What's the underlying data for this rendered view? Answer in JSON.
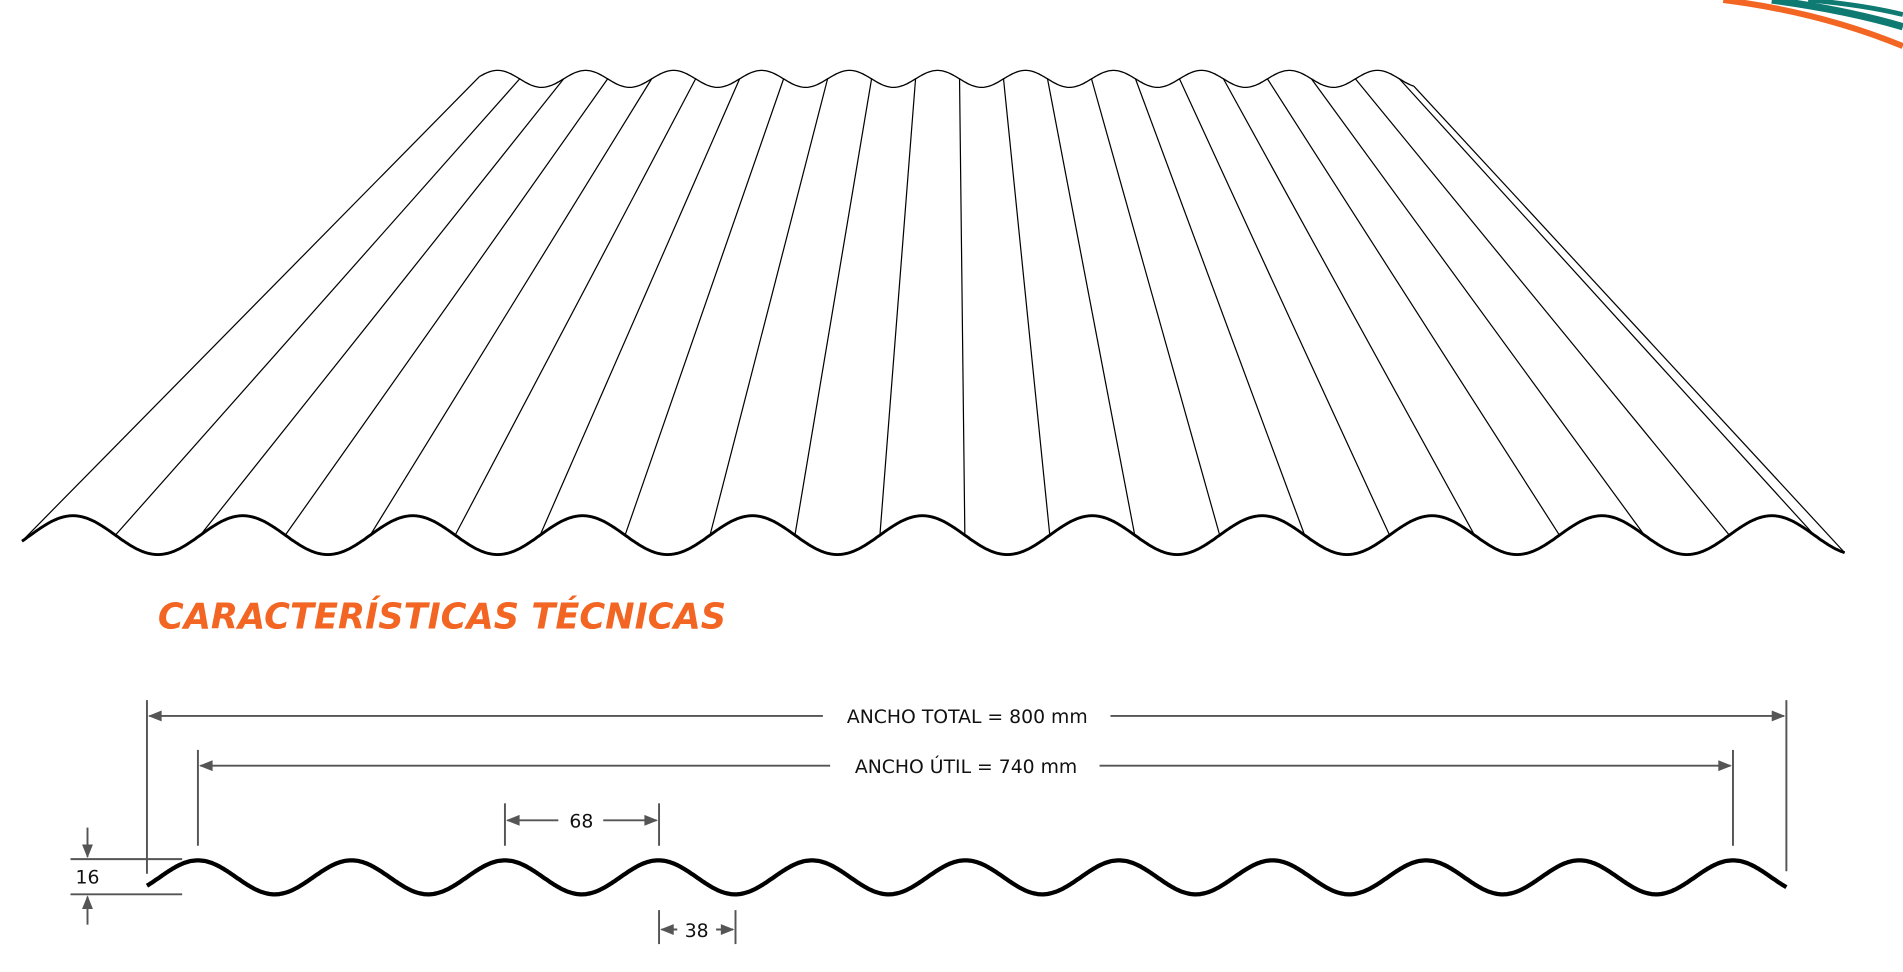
{
  "title": "CARACTERÍSTICAS TÉCNICAS",
  "colors": {
    "accent": "#f26522",
    "logo_teal": "#0e7a72",
    "dimension": "#555555",
    "profile": "#000000"
  },
  "dimensions": {
    "total_width": "ANCHO TOTAL = 800 mm",
    "useful_width": "ANCHO ÚTIL = 740 mm",
    "pitch": "68",
    "valley": "38",
    "height": "16"
  },
  "corrugations": 11
}
